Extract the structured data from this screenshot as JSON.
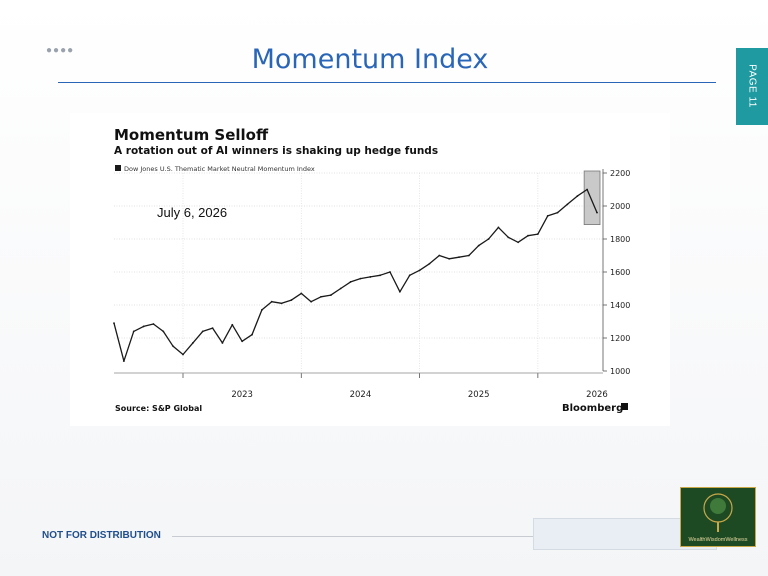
{
  "slide": {
    "title": "Momentum Index",
    "page_label": "PAGE 11",
    "footer": "NOT FOR DISTRIBUTION",
    "logo_text": "WealthWisdomWellness"
  },
  "chart": {
    "title": "Momentum Selloff",
    "subtitle": "A rotation out of AI winners is shaking up hedge funds",
    "annotation": "July 6, 2026",
    "source": "Source: S&P Global",
    "brand": "Bloomberg"
  },
  "chart_data": {
    "type": "line",
    "series": [
      {
        "name": "Dow Jones U.S. Thematic Market Neutral Momentum Index",
        "color": "#1a1a1a",
        "x": [
          "2022-06",
          "2022-07",
          "2022-08",
          "2022-09",
          "2022-10",
          "2022-11",
          "2022-12",
          "2023-01",
          "2023-02",
          "2023-03",
          "2023-04",
          "2023-05",
          "2023-06",
          "2023-07",
          "2023-08",
          "2023-09",
          "2023-10",
          "2023-11",
          "2023-12",
          "2024-01",
          "2024-02",
          "2024-03",
          "2024-04",
          "2024-05",
          "2024-06",
          "2024-07",
          "2024-08",
          "2024-09",
          "2024-10",
          "2024-11",
          "2024-12",
          "2025-01",
          "2025-02",
          "2025-03",
          "2025-04",
          "2025-05",
          "2025-06",
          "2025-07",
          "2025-08",
          "2025-09",
          "2025-10",
          "2025-11",
          "2025-12",
          "2026-01",
          "2026-02",
          "2026-03",
          "2026-04",
          "2026-05",
          "2026-06",
          "2026-07"
        ],
        "values": [
          1290,
          1060,
          1240,
          1270,
          1285,
          1240,
          1150,
          1100,
          1170,
          1240,
          1260,
          1170,
          1280,
          1180,
          1220,
          1370,
          1420,
          1410,
          1430,
          1470,
          1420,
          1450,
          1460,
          1500,
          1540,
          1560,
          1570,
          1580,
          1600,
          1480,
          1580,
          1610,
          1650,
          1700,
          1680,
          1690,
          1700,
          1760,
          1800,
          1870,
          1810,
          1780,
          1820,
          1830,
          1940,
          1960,
          2010,
          2060,
          2100,
          1960
        ]
      }
    ],
    "x_ticks": [
      "2023",
      "2024",
      "2025",
      "2026"
    ],
    "y_ticks": [
      1000,
      1200,
      1400,
      1600,
      1800,
      2000,
      2200
    ],
    "ylim": [
      1000,
      2200
    ],
    "legend": "top-left",
    "grid": true,
    "highlight": "last two months (Jun–Jul 2026) shaded"
  }
}
